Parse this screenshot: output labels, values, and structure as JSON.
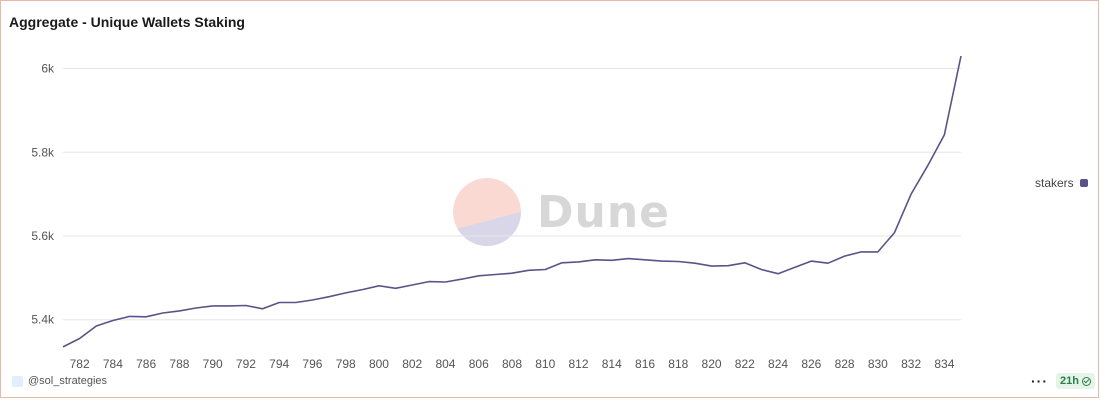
{
  "header": {
    "title": "Aggregate - Unique Wallets Staking"
  },
  "footer": {
    "author": "@sol_strategies",
    "age": "21h",
    "menu_icon": "more-dots-icon"
  },
  "watermark": {
    "text": "Dune"
  },
  "colors": {
    "line": "#5b5387",
    "grid": "#e6e6e6",
    "border": "#e8b8a6",
    "logo_top": "#f9d9d1",
    "logo_bottom": "#d8d6e8"
  },
  "chart_data": {
    "type": "line",
    "title": "Aggregate - Unique Wallets Staking",
    "xlabel": "",
    "ylabel": "",
    "x": [
      781,
      782,
      783,
      784,
      785,
      786,
      787,
      788,
      789,
      790,
      791,
      792,
      793,
      794,
      795,
      796,
      797,
      798,
      799,
      800,
      801,
      802,
      803,
      804,
      805,
      806,
      807,
      808,
      809,
      810,
      811,
      812,
      813,
      814,
      815,
      816,
      817,
      818,
      819,
      820,
      821,
      822,
      823,
      824,
      825,
      826,
      827,
      828,
      829,
      830,
      831,
      832,
      833,
      834,
      835
    ],
    "series": [
      {
        "name": "stakers",
        "values": [
          5335,
          5355,
          5385,
          5398,
          5408,
          5407,
          5416,
          5421,
          5428,
          5433,
          5433,
          5434,
          5426,
          5441,
          5441,
          5447,
          5455,
          5464,
          5472,
          5481,
          5475,
          5483,
          5491,
          5490,
          5497,
          5505,
          5508,
          5511,
          5518,
          5520,
          5536,
          5538,
          5543,
          5542,
          5546,
          5543,
          5540,
          5539,
          5535,
          5528,
          5529,
          5536,
          5520,
          5510,
          5525,
          5540,
          5535,
          5552,
          5562,
          5562,
          5608,
          5700,
          5768,
          5842,
          6030
        ]
      }
    ],
    "xticks": [
      782,
      784,
      786,
      788,
      790,
      792,
      794,
      796,
      798,
      800,
      802,
      804,
      806,
      808,
      810,
      812,
      814,
      816,
      818,
      820,
      822,
      824,
      826,
      828,
      830,
      832,
      834
    ],
    "yticks": [
      {
        "value": 5400,
        "label": "5.4k"
      },
      {
        "value": 5600,
        "label": "5.6k"
      },
      {
        "value": 5800,
        "label": "5.8k"
      },
      {
        "value": 6000,
        "label": "6k"
      }
    ],
    "xlim": [
      781,
      835
    ],
    "ylim": [
      5330,
      6030
    ],
    "grid": true,
    "legend_position": "right"
  }
}
